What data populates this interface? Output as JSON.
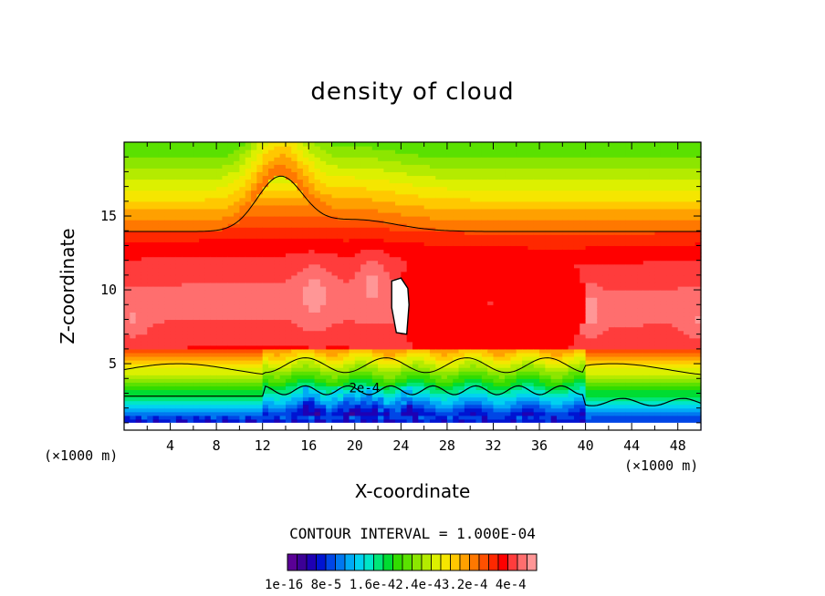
{
  "chart_data": {
    "type": "heatmap",
    "title": "density of cloud",
    "xlabel": "X-coordinate",
    "ylabel": "Z-coordinate",
    "x_unit": "(×1000 m)",
    "xlim": [
      0,
      50
    ],
    "ylim": [
      0.5,
      20
    ],
    "x_ticks": [
      4,
      8,
      12,
      16,
      20,
      24,
      28,
      32,
      36,
      40,
      44,
      48
    ],
    "y_ticks": [
      5,
      10,
      15
    ],
    "contour_interval_text": "CONTOUR INTERVAL = 1.000E-04",
    "contour_label": "2e-4",
    "colorbar_labels": [
      "1e-16",
      "8e-5",
      "1.6e-4",
      "2.4e-4",
      "3.2e-4",
      "4e-4"
    ],
    "colorbar_label_text": "1e-16  8e-5  1.6e-42.4e-43.2e-4  4e-4",
    "colormap": [
      "#5a0096",
      "#3c0096",
      "#1e00b4",
      "#0014d2",
      "#0046e6",
      "#0078f0",
      "#00aaf5",
      "#00d2f0",
      "#00e6c8",
      "#00e678",
      "#00dc32",
      "#32dc00",
      "#5ae100",
      "#8ce600",
      "#b4eb00",
      "#dcf000",
      "#f5e600",
      "#ffc800",
      "#ffa000",
      "#ff7800",
      "#ff5000",
      "#ff2800",
      "#ff0000",
      "#ff3c3c",
      "#ff6e6e",
      "#ff9696"
    ],
    "legend_placement": "bottom"
  }
}
